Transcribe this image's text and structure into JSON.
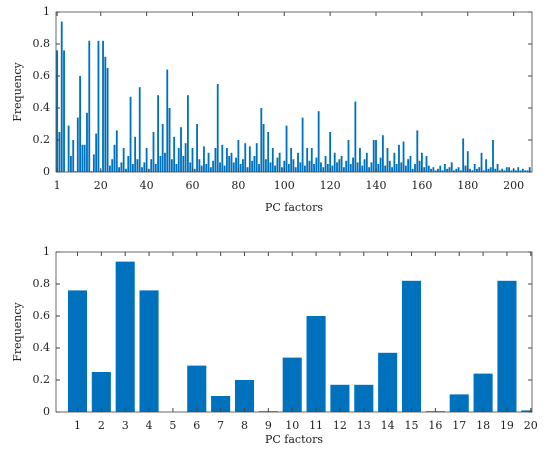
{
  "chart_data": [
    {
      "type": "bar",
      "x_label": "PC factors",
      "y_label": "Frequency",
      "color": "#0072bd",
      "x": [
        1,
        2,
        3,
        4,
        5,
        6,
        7,
        8,
        9,
        10,
        11,
        12,
        13,
        14,
        15,
        16,
        17,
        18,
        19,
        20,
        21,
        22,
        23,
        24,
        25,
        26,
        27,
        28,
        29,
        30,
        31,
        32,
        33,
        34,
        35,
        36,
        37,
        38,
        39,
        40,
        41,
        42,
        43,
        44,
        45,
        46,
        47,
        48,
        49,
        50,
        51,
        52,
        53,
        54,
        55,
        56,
        57,
        58,
        59,
        60,
        61,
        62,
        63,
        64,
        65,
        66,
        67,
        68,
        69,
        70,
        71,
        72,
        73,
        74,
        75,
        76,
        77,
        78,
        79,
        80,
        81,
        82,
        83,
        84,
        85,
        86,
        87,
        88,
        89,
        90,
        91,
        92,
        93,
        94,
        95,
        96,
        97,
        98,
        99,
        100,
        101,
        102,
        103,
        104,
        105,
        106,
        107,
        108,
        109,
        110,
        111,
        112,
        113,
        114,
        115,
        116,
        117,
        118,
        119,
        120,
        121,
        122,
        123,
        124,
        125,
        126,
        127,
        128,
        129,
        130,
        131,
        132,
        133,
        134,
        135,
        136,
        137,
        138,
        139,
        140,
        141,
        142,
        143,
        144,
        145,
        146,
        147,
        148,
        149,
        150,
        151,
        152,
        153,
        154,
        155,
        156,
        157,
        158,
        159,
        160,
        161,
        162,
        163,
        164,
        165,
        166,
        167,
        168,
        169,
        170,
        171,
        172,
        173,
        174,
        175,
        176,
        177,
        178,
        179,
        180,
        181,
        182,
        183,
        184,
        185,
        186,
        187,
        188,
        189,
        190,
        191,
        192,
        193,
        194,
        195,
        196,
        197,
        198,
        199,
        200,
        201,
        202,
        203,
        204,
        205,
        206,
        207
      ],
      "values": [
        0.76,
        0.25,
        0.94,
        0.76,
        0,
        0.29,
        0.1,
        0.2,
        0.005,
        0.34,
        0.6,
        0.17,
        0.17,
        0.37,
        0.82,
        0.005,
        0.11,
        0.24,
        0.82,
        0.01,
        0.82,
        0.72,
        0.65,
        0.04,
        0.08,
        0.17,
        0.26,
        0.03,
        0.06,
        0.15,
        0.02,
        0.1,
        0.47,
        0.05,
        0.22,
        0.08,
        0.53,
        0.03,
        0.06,
        0.15,
        0.02,
        0.08,
        0.25,
        0.05,
        0.48,
        0.1,
        0.3,
        0.12,
        0.64,
        0.4,
        0.08,
        0.22,
        0.05,
        0.15,
        0.28,
        0.1,
        0.18,
        0.48,
        0.06,
        0.15,
        0.02,
        0.3,
        0.08,
        0.04,
        0.16,
        0.05,
        0.12,
        0.03,
        0.07,
        0.15,
        0.55,
        0.06,
        0.17,
        0.04,
        0.15,
        0.1,
        0.12,
        0.06,
        0.09,
        0.2,
        0.05,
        0.08,
        0.18,
        0.03,
        0.16,
        0.07,
        0.1,
        0.18,
        0.05,
        0.4,
        0.3,
        0.08,
        0.25,
        0.06,
        0.15,
        0.04,
        0.09,
        0.12,
        0.03,
        0.07,
        0.29,
        0.05,
        0.15,
        0.08,
        0.03,
        0.12,
        0.06,
        0.34,
        0.04,
        0.15,
        0.07,
        0.15,
        0.05,
        0.09,
        0.38,
        0.06,
        0.03,
        0.1,
        0.05,
        0.25,
        0.04,
        0.12,
        0.06,
        0.08,
        0.1,
        0.03,
        0.07,
        0.2,
        0.05,
        0.09,
        0.44,
        0.06,
        0.15,
        0.04,
        0.08,
        0.12,
        0.03,
        0.06,
        0.2,
        0.2,
        0.05,
        0.09,
        0.23,
        0.04,
        0.15,
        0.07,
        0.03,
        0.12,
        0.05,
        0.17,
        0.06,
        0.19,
        0.04,
        0.08,
        0.1,
        0.02,
        0.05,
        0.26,
        0.07,
        0.12,
        0.03,
        0.1,
        0.04,
        0.02,
        0.03,
        0.01,
        0.02,
        0.04,
        0.01,
        0.05,
        0.02,
        0.03,
        0.06,
        0.01,
        0.02,
        0.03,
        0.01,
        0.21,
        0.04,
        0.13,
        0.02,
        0.01,
        0.05,
        0.02,
        0.03,
        0.12,
        0.01,
        0.08,
        0.02,
        0.03,
        0.2,
        0.02,
        0.05,
        0.01,
        0.02,
        0.01,
        0.03,
        0.03,
        0.01,
        0.02,
        0.01,
        0.03,
        0.01,
        0.02,
        0.01,
        0.01,
        0.03
      ],
      "xlim": [
        0.5,
        208
      ],
      "xticks": [
        1,
        20,
        40,
        60,
        80,
        100,
        120,
        140,
        160,
        180,
        200
      ],
      "ylim": [
        0,
        1
      ],
      "yticks": [
        0,
        0.2,
        0.4,
        0.6,
        0.8,
        1
      ]
    },
    {
      "type": "bar",
      "x_label": "PC factors",
      "y_label": "Frequency",
      "color": "#0072bd",
      "x": [
        1,
        2,
        3,
        4,
        5,
        6,
        7,
        8,
        9,
        10,
        11,
        12,
        13,
        14,
        15,
        16,
        17,
        18,
        19,
        20
      ],
      "values": [
        0.76,
        0.25,
        0.94,
        0.76,
        0,
        0.29,
        0.1,
        0.2,
        0.005,
        0.34,
        0.6,
        0.17,
        0.17,
        0.37,
        0.82,
        0.005,
        0.11,
        0.24,
        0.82,
        0.01
      ],
      "xlim": [
        0.1,
        20.05
      ],
      "xticks": [
        1,
        2,
        3,
        4,
        5,
        6,
        7,
        8,
        9,
        10,
        11,
        12,
        13,
        14,
        15,
        16,
        17,
        18,
        19,
        20
      ],
      "ylim": [
        0,
        1
      ],
      "yticks": [
        0,
        0.2,
        0.4,
        0.6,
        0.8,
        1
      ]
    }
  ]
}
